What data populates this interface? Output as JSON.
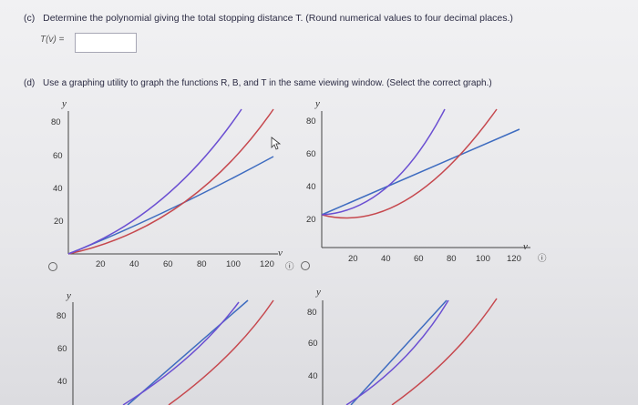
{
  "question_c": {
    "label": "(c)",
    "text": "Determine the polynomial giving the total stopping distance T. (Round numerical values to four decimal places.)",
    "answer_prefix": "T(v) =",
    "answer_value": ""
  },
  "question_d": {
    "label": "(d)",
    "text": "Use a graphing utility to graph the functions R, B, and T in the same viewing window. (Select the correct graph.)"
  },
  "graph_options": {
    "y_axis_label": "y",
    "x_axis_label": "v",
    "x_ticks": [
      "20",
      "40",
      "60",
      "80",
      "100",
      "120"
    ],
    "y_ticks": [
      "20",
      "40",
      "60",
      "80"
    ],
    "info_symbol": "ⓘ",
    "colors": {
      "blue": "#3e6cc0",
      "red": "#c6484e",
      "purple": "#6b4fd2"
    }
  }
}
